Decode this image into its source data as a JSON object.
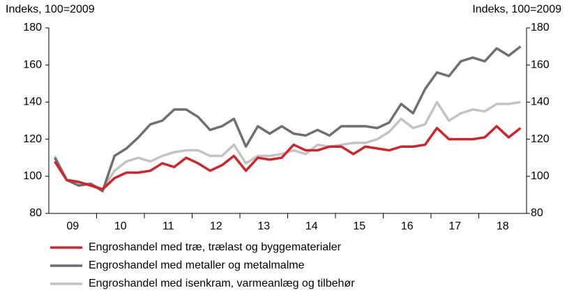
{
  "chart_data": {
    "type": "line",
    "y_label": "Indeks, 100=2009",
    "y2_label": "Indeks, 100=2009",
    "x_labels": [
      "09",
      "10",
      "11",
      "12",
      "13",
      "14",
      "15",
      "16",
      "17",
      "18"
    ],
    "ylim": [
      80,
      180
    ],
    "yticks": [
      80,
      100,
      120,
      140,
      160,
      180
    ],
    "y2lim": [
      80,
      180
    ],
    "y2ticks": [
      80,
      100,
      120,
      140,
      160,
      180
    ],
    "grid": false,
    "series": [
      {
        "name": "Engroshandel med træ, trælast og byggematerialer",
        "color": "#d2232a",
        "values": [
          108,
          98,
          97,
          95,
          93,
          99,
          102,
          102,
          103,
          107,
          105,
          110,
          107,
          103,
          106,
          111,
          103,
          110,
          109,
          110,
          117,
          114,
          114,
          116,
          116,
          112,
          116,
          115,
          114,
          116,
          116,
          117,
          126,
          120,
          120,
          120,
          121,
          127,
          121,
          126
        ]
      },
      {
        "name": "Engroshandel med metaller og metalmalme",
        "color": "#6f6f6f",
        "values": [
          110,
          98,
          95,
          96,
          92,
          111,
          115,
          121,
          128,
          130,
          136,
          136,
          132,
          125,
          127,
          131,
          116,
          127,
          123,
          127,
          123,
          122,
          125,
          122,
          127,
          127,
          127,
          126,
          129,
          139,
          134,
          147,
          156,
          154,
          162,
          164,
          162,
          169,
          165,
          170
        ]
      },
      {
        "name": "Engroshandel med isenkram, varmeanlæg og tilbehør",
        "color": "#c3c3c3",
        "values": [
          111,
          98,
          96,
          96,
          93,
          103,
          108,
          110,
          108,
          111,
          113,
          114,
          114,
          111,
          111,
          117,
          107,
          111,
          111,
          112,
          114,
          112,
          117,
          116,
          117,
          118,
          118,
          120,
          124,
          131,
          126,
          128,
          140,
          130,
          134,
          136,
          135,
          139,
          139,
          140
        ]
      }
    ]
  }
}
